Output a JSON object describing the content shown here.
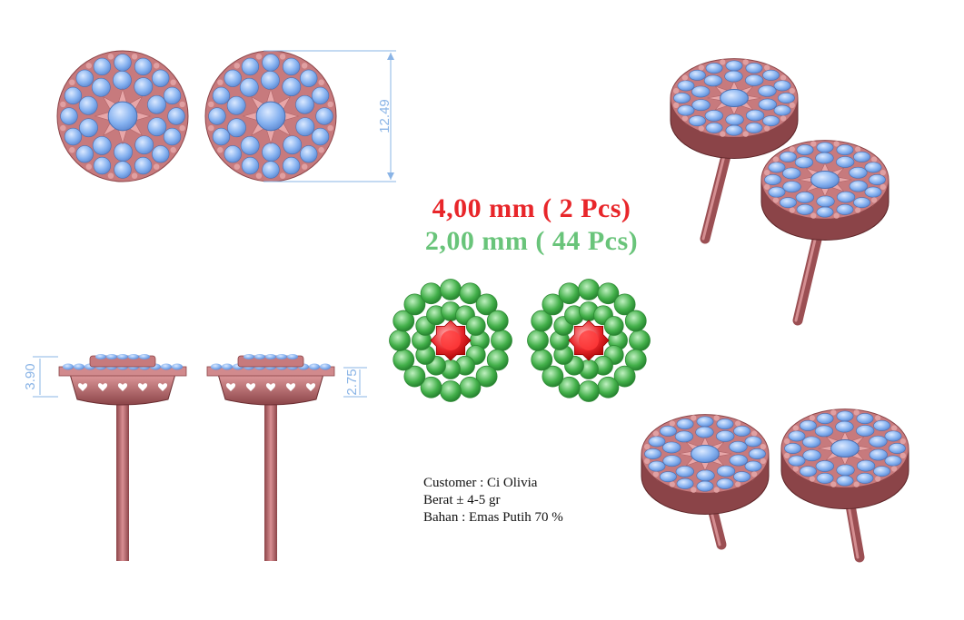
{
  "stones": {
    "main": "4,00 mm ( 2 Pcs)",
    "accent": "2,00 mm ( 44 Pcs)"
  },
  "info": {
    "customer": "Customer : Ci Olivia",
    "weight": "Berat ± 4-5 gr",
    "material": "Bahan : Emas Putih 70 %"
  },
  "dimensions": {
    "diameter": "12.49",
    "height_total": "3.90",
    "height_setting": "2.75"
  },
  "colors": {
    "metal": "#c77a7d",
    "metal_dark": "#7a3a3e",
    "stone": "#86b2f0",
    "main_stone": "#e8262a",
    "accent_stone": "#4caf50",
    "dim_line": "#8ab4e6"
  }
}
